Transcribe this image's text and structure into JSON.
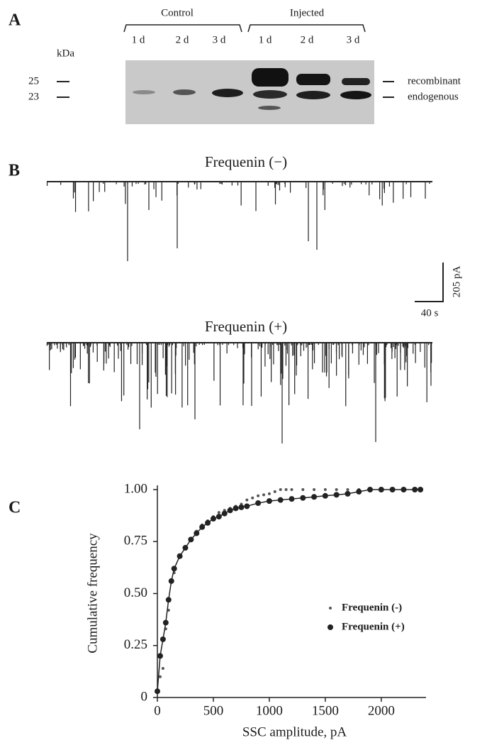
{
  "panel_a": {
    "label": "A",
    "groups": [
      "Control",
      "Injected"
    ],
    "lanes": [
      "1 d",
      "2 d",
      "3 d",
      "1 d",
      "2 d",
      "3 d"
    ],
    "unit": "kDa",
    "markers": [
      "25",
      "23"
    ],
    "bands": [
      "recombinant",
      "endogenous"
    ]
  },
  "panel_b": {
    "label": "B",
    "traces": [
      "Frequenin (−)",
      "Frequenin (+)"
    ],
    "scale_y": "205 pA",
    "scale_x": "40 s"
  },
  "chart_data": {
    "type": "scatter",
    "panel_label": "C",
    "xlabel": "SSC amplitude, pA",
    "ylabel": "Cumulative frequency",
    "xlim": [
      0,
      2400
    ],
    "ylim": [
      0,
      1
    ],
    "xticks": [
      0,
      500,
      1000,
      1500,
      2000
    ],
    "yticks": [
      0,
      0.25,
      {
        "value": 0.5,
        "label": "0.50"
      },
      0.75,
      {
        "value": 1,
        "label": "1.00"
      }
    ],
    "legend": "right",
    "series": [
      {
        "name": "Frequenin (-)",
        "color": "#555555",
        "x": [
          0,
          25,
          50,
          75,
          100,
          150,
          200,
          250,
          300,
          350,
          400,
          450,
          500,
          550,
          600,
          650,
          700,
          750,
          800,
          850,
          900,
          950,
          1000,
          1050,
          1100,
          1150,
          1200,
          1300,
          1400,
          1500,
          1600,
          1700,
          1800,
          1900,
          2000,
          2100,
          2200,
          2300,
          2350
        ],
        "values": [
          0.03,
          0.1,
          0.14,
          0.33,
          0.42,
          0.6,
          0.68,
          0.72,
          0.76,
          0.8,
          0.83,
          0.85,
          0.87,
          0.89,
          0.9,
          0.91,
          0.92,
          0.93,
          0.95,
          0.96,
          0.97,
          0.975,
          0.98,
          0.99,
          1,
          1,
          1,
          1,
          1,
          1,
          1,
          1,
          1,
          1,
          1,
          1,
          1,
          1,
          1
        ]
      },
      {
        "name": "Frequenin (+)",
        "color": "#222222",
        "x": [
          0,
          25,
          50,
          75,
          100,
          125,
          150,
          200,
          250,
          300,
          350,
          400,
          450,
          500,
          550,
          600,
          650,
          700,
          750,
          800,
          900,
          1000,
          1100,
          1200,
          1300,
          1400,
          1500,
          1600,
          1700,
          1800,
          1900,
          2000,
          2100,
          2200,
          2300,
          2350
        ],
        "values": [
          0.03,
          0.2,
          0.28,
          0.36,
          0.47,
          0.56,
          0.62,
          0.68,
          0.72,
          0.76,
          0.79,
          0.82,
          0.84,
          0.86,
          0.87,
          0.885,
          0.9,
          0.91,
          0.915,
          0.92,
          0.935,
          0.945,
          0.95,
          0.955,
          0.96,
          0.965,
          0.97,
          0.975,
          0.98,
          0.99,
          1,
          1,
          1,
          1,
          1,
          1
        ]
      }
    ]
  }
}
